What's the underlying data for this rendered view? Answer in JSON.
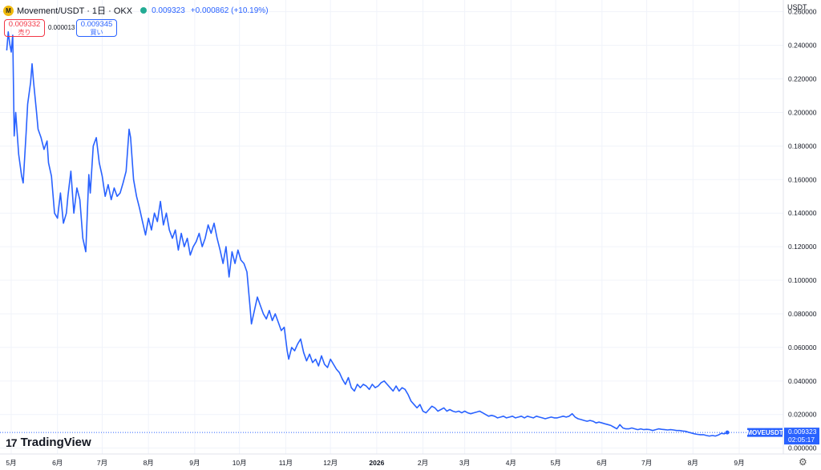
{
  "header": {
    "logo_letter": "M",
    "symbol": "Movement/USDT · 1日 · OKX",
    "price": "0.009323",
    "change": "+0.000862 (+10.19%)"
  },
  "trade": {
    "sell_price": "0.009332",
    "sell_label": "売り",
    "spread": "0.000013",
    "buy_price": "0.009345",
    "buy_label": "買い"
  },
  "currency": "USDT",
  "branding": "TradingView",
  "colors": {
    "line": "#2962ff",
    "sell": "#f23645",
    "buy": "#2962ff",
    "status": "#22ab94"
  },
  "icons": {
    "settings": "gear-icon",
    "status": "market-open-dot"
  },
  "chart_data": {
    "type": "line",
    "ylim": [
      -0.0035,
      0.267
    ],
    "grid": true,
    "y_ticks": [
      "0.260000",
      "0.240000",
      "0.220000",
      "0.200000",
      "0.180000",
      "0.160000",
      "0.140000",
      "0.120000",
      "0.100000",
      "0.080000",
      "0.060000",
      "0.040000",
      "0.020000",
      "0.000000"
    ],
    "y_tick_values": [
      0.26,
      0.24,
      0.22,
      0.2,
      0.18,
      0.16,
      0.14,
      0.12,
      0.1,
      0.08,
      0.06,
      0.04,
      0.02,
      0.0
    ],
    "x_ticks": [
      "5月",
      "6月",
      "7月",
      "8月",
      "9月",
      "10月",
      "11月",
      "12月",
      "2026",
      "2月",
      "3月",
      "4月",
      "5月",
      "6月",
      "7月",
      "8月",
      "9月"
    ],
    "x_tick_dates": [
      "2025-05-01",
      "2025-06-01",
      "2025-07-01",
      "2025-08-01",
      "2025-09-01",
      "2025-10-01",
      "2025-11-01",
      "2025-12-01",
      "2026-01-01",
      "2026-02-01",
      "2026-03-01",
      "2026-04-01",
      "2026-05-01",
      "2026-06-01",
      "2026-07-01",
      "2026-08-01",
      "2026-09-01"
    ],
    "series": [
      {
        "last_price_label": "0.009323",
        "countdown": "02:05:17",
        "symbol_label": "MOVEUSDT",
        "points": [
          [
            "2025-04-28",
            0.237
          ],
          [
            "2025-04-29",
            0.248
          ],
          [
            "2025-04-30",
            0.241
          ],
          [
            "2025-05-01",
            0.236
          ],
          [
            "2025-05-02",
            0.246
          ],
          [
            "2025-05-03",
            0.186
          ],
          [
            "2025-05-04",
            0.2
          ],
          [
            "2025-05-06",
            0.175
          ],
          [
            "2025-05-08",
            0.162
          ],
          [
            "2025-05-09",
            0.158
          ],
          [
            "2025-05-11",
            0.188
          ],
          [
            "2025-05-12",
            0.205
          ],
          [
            "2025-05-14",
            0.218
          ],
          [
            "2025-05-15",
            0.229
          ],
          [
            "2025-05-16",
            0.218
          ],
          [
            "2025-05-18",
            0.2
          ],
          [
            "2025-05-19",
            0.19
          ],
          [
            "2025-05-21",
            0.185
          ],
          [
            "2025-05-23",
            0.178
          ],
          [
            "2025-05-25",
            0.183
          ],
          [
            "2025-05-26",
            0.17
          ],
          [
            "2025-05-28",
            0.162
          ],
          [
            "2025-05-30",
            0.14
          ],
          [
            "2025-06-01",
            0.137
          ],
          [
            "2025-06-03",
            0.152
          ],
          [
            "2025-06-05",
            0.134
          ],
          [
            "2025-06-07",
            0.14
          ],
          [
            "2025-06-08",
            0.15
          ],
          [
            "2025-06-10",
            0.165
          ],
          [
            "2025-06-12",
            0.14
          ],
          [
            "2025-06-14",
            0.155
          ],
          [
            "2025-06-16",
            0.148
          ],
          [
            "2025-06-18",
            0.125
          ],
          [
            "2025-06-20",
            0.117
          ],
          [
            "2025-06-22",
            0.163
          ],
          [
            "2025-06-23",
            0.152
          ],
          [
            "2025-06-25",
            0.18
          ],
          [
            "2025-06-27",
            0.185
          ],
          [
            "2025-06-29",
            0.17
          ],
          [
            "2025-07-01",
            0.162
          ],
          [
            "2025-07-03",
            0.15
          ],
          [
            "2025-07-05",
            0.157
          ],
          [
            "2025-07-07",
            0.148
          ],
          [
            "2025-07-09",
            0.155
          ],
          [
            "2025-07-11",
            0.15
          ],
          [
            "2025-07-13",
            0.152
          ],
          [
            "2025-07-15",
            0.158
          ],
          [
            "2025-07-17",
            0.165
          ],
          [
            "2025-07-19",
            0.19
          ],
          [
            "2025-07-20",
            0.185
          ],
          [
            "2025-07-22",
            0.16
          ],
          [
            "2025-07-24",
            0.15
          ],
          [
            "2025-07-26",
            0.143
          ],
          [
            "2025-07-28",
            0.135
          ],
          [
            "2025-07-30",
            0.127
          ],
          [
            "2025-08-01",
            0.137
          ],
          [
            "2025-08-03",
            0.13
          ],
          [
            "2025-08-05",
            0.14
          ],
          [
            "2025-08-07",
            0.135
          ],
          [
            "2025-08-09",
            0.147
          ],
          [
            "2025-08-11",
            0.133
          ],
          [
            "2025-08-13",
            0.14
          ],
          [
            "2025-08-15",
            0.13
          ],
          [
            "2025-08-17",
            0.125
          ],
          [
            "2025-08-19",
            0.13
          ],
          [
            "2025-08-21",
            0.118
          ],
          [
            "2025-08-23",
            0.128
          ],
          [
            "2025-08-25",
            0.12
          ],
          [
            "2025-08-27",
            0.125
          ],
          [
            "2025-08-29",
            0.115
          ],
          [
            "2025-08-31",
            0.12
          ],
          [
            "2025-09-02",
            0.123
          ],
          [
            "2025-09-04",
            0.128
          ],
          [
            "2025-09-06",
            0.12
          ],
          [
            "2025-09-08",
            0.125
          ],
          [
            "2025-09-10",
            0.133
          ],
          [
            "2025-09-12",
            0.128
          ],
          [
            "2025-09-14",
            0.134
          ],
          [
            "2025-09-16",
            0.125
          ],
          [
            "2025-09-18",
            0.118
          ],
          [
            "2025-09-20",
            0.11
          ],
          [
            "2025-09-22",
            0.12
          ],
          [
            "2025-09-24",
            0.102
          ],
          [
            "2025-09-26",
            0.117
          ],
          [
            "2025-09-28",
            0.11
          ],
          [
            "2025-09-30",
            0.118
          ],
          [
            "2025-10-02",
            0.112
          ],
          [
            "2025-10-04",
            0.11
          ],
          [
            "2025-10-06",
            0.105
          ],
          [
            "2025-10-08",
            0.085
          ],
          [
            "2025-10-09",
            0.074
          ],
          [
            "2025-10-11",
            0.082
          ],
          [
            "2025-10-13",
            0.09
          ],
          [
            "2025-10-15",
            0.085
          ],
          [
            "2025-10-17",
            0.08
          ],
          [
            "2025-10-19",
            0.077
          ],
          [
            "2025-10-21",
            0.082
          ],
          [
            "2025-10-23",
            0.076
          ],
          [
            "2025-10-25",
            0.08
          ],
          [
            "2025-10-27",
            0.075
          ],
          [
            "2025-10-29",
            0.07
          ],
          [
            "2025-10-31",
            0.072
          ],
          [
            "2025-11-02",
            0.058
          ],
          [
            "2025-11-03",
            0.053
          ],
          [
            "2025-11-05",
            0.06
          ],
          [
            "2025-11-07",
            0.058
          ],
          [
            "2025-11-09",
            0.062
          ],
          [
            "2025-11-11",
            0.065
          ],
          [
            "2025-11-13",
            0.057
          ],
          [
            "2025-11-15",
            0.052
          ],
          [
            "2025-11-17",
            0.056
          ],
          [
            "2025-11-19",
            0.051
          ],
          [
            "2025-11-21",
            0.053
          ],
          [
            "2025-11-23",
            0.049
          ],
          [
            "2025-11-25",
            0.055
          ],
          [
            "2025-11-27",
            0.05
          ],
          [
            "2025-11-29",
            0.048
          ],
          [
            "2025-12-01",
            0.053
          ],
          [
            "2025-12-03",
            0.05
          ],
          [
            "2025-12-05",
            0.047
          ],
          [
            "2025-12-07",
            0.045
          ],
          [
            "2025-12-09",
            0.041
          ],
          [
            "2025-12-11",
            0.038
          ],
          [
            "2025-12-13",
            0.042
          ],
          [
            "2025-12-15",
            0.036
          ],
          [
            "2025-12-17",
            0.034
          ],
          [
            "2025-12-19",
            0.038
          ],
          [
            "2025-12-21",
            0.036
          ],
          [
            "2025-12-23",
            0.038
          ],
          [
            "2025-12-25",
            0.037
          ],
          [
            "2025-12-27",
            0.035
          ],
          [
            "2025-12-29",
            0.038
          ],
          [
            "2025-12-31",
            0.036
          ],
          [
            "2026-01-02",
            0.037
          ],
          [
            "2026-01-04",
            0.039
          ],
          [
            "2026-01-06",
            0.04
          ],
          [
            "2026-01-08",
            0.038
          ],
          [
            "2026-01-10",
            0.036
          ],
          [
            "2026-01-12",
            0.034
          ],
          [
            "2026-01-14",
            0.037
          ],
          [
            "2026-01-16",
            0.034
          ],
          [
            "2026-01-18",
            0.036
          ],
          [
            "2026-01-20",
            0.035
          ],
          [
            "2026-01-22",
            0.032
          ],
          [
            "2026-01-24",
            0.028
          ],
          [
            "2026-01-26",
            0.026
          ],
          [
            "2026-01-28",
            0.024
          ],
          [
            "2026-01-30",
            0.026
          ],
          [
            "2026-02-01",
            0.022
          ],
          [
            "2026-02-03",
            0.021
          ],
          [
            "2026-02-05",
            0.023
          ],
          [
            "2026-02-07",
            0.025
          ],
          [
            "2026-02-09",
            0.024
          ],
          [
            "2026-02-11",
            0.022
          ],
          [
            "2026-02-13",
            0.023
          ],
          [
            "2026-02-15",
            0.024
          ],
          [
            "2026-02-17",
            0.022
          ],
          [
            "2026-02-19",
            0.023
          ],
          [
            "2026-02-21",
            0.022
          ],
          [
            "2026-02-23",
            0.0215
          ],
          [
            "2026-02-25",
            0.022
          ],
          [
            "2026-02-27",
            0.021
          ],
          [
            "2026-03-01",
            0.022
          ],
          [
            "2026-03-03",
            0.021
          ],
          [
            "2026-03-05",
            0.0205
          ],
          [
            "2026-03-07",
            0.021
          ],
          [
            "2026-03-09",
            0.0215
          ],
          [
            "2026-03-11",
            0.022
          ],
          [
            "2026-03-13",
            0.021
          ],
          [
            "2026-03-15",
            0.02
          ],
          [
            "2026-03-17",
            0.019
          ],
          [
            "2026-03-19",
            0.0195
          ],
          [
            "2026-03-21",
            0.019
          ],
          [
            "2026-03-23",
            0.018
          ],
          [
            "2026-03-25",
            0.0185
          ],
          [
            "2026-03-27",
            0.019
          ],
          [
            "2026-03-29",
            0.018
          ],
          [
            "2026-03-31",
            0.0185
          ],
          [
            "2026-04-02",
            0.019
          ],
          [
            "2026-04-04",
            0.018
          ],
          [
            "2026-04-06",
            0.0185
          ],
          [
            "2026-04-08",
            0.019
          ],
          [
            "2026-04-10",
            0.018
          ],
          [
            "2026-04-12",
            0.019
          ],
          [
            "2026-04-14",
            0.0185
          ],
          [
            "2026-04-16",
            0.018
          ],
          [
            "2026-04-18",
            0.019
          ],
          [
            "2026-04-20",
            0.0185
          ],
          [
            "2026-04-22",
            0.018
          ],
          [
            "2026-04-24",
            0.0175
          ],
          [
            "2026-04-26",
            0.018
          ],
          [
            "2026-04-28",
            0.0185
          ],
          [
            "2026-04-30",
            0.018
          ],
          [
            "2026-05-02",
            0.018
          ],
          [
            "2026-05-04",
            0.0185
          ],
          [
            "2026-05-06",
            0.019
          ],
          [
            "2026-05-08",
            0.0185
          ],
          [
            "2026-05-10",
            0.019
          ],
          [
            "2026-05-12",
            0.0205
          ],
          [
            "2026-05-14",
            0.0185
          ],
          [
            "2026-05-16",
            0.0175
          ],
          [
            "2026-05-18",
            0.017
          ],
          [
            "2026-05-20",
            0.0165
          ],
          [
            "2026-05-22",
            0.016
          ],
          [
            "2026-05-24",
            0.0165
          ],
          [
            "2026-05-26",
            0.016
          ],
          [
            "2026-05-28",
            0.015
          ],
          [
            "2026-05-30",
            0.0155
          ],
          [
            "2026-06-01",
            0.015
          ],
          [
            "2026-06-03",
            0.0145
          ],
          [
            "2026-06-05",
            0.014
          ],
          [
            "2026-06-07",
            0.0135
          ],
          [
            "2026-06-09",
            0.0125
          ],
          [
            "2026-06-11",
            0.0115
          ],
          [
            "2026-06-13",
            0.014
          ],
          [
            "2026-06-15",
            0.012
          ],
          [
            "2026-06-17",
            0.0115
          ],
          [
            "2026-06-19",
            0.0115
          ],
          [
            "2026-06-21",
            0.012
          ],
          [
            "2026-06-23",
            0.0115
          ],
          [
            "2026-06-25",
            0.011
          ],
          [
            "2026-06-27",
            0.0115
          ],
          [
            "2026-06-29",
            0.011
          ],
          [
            "2026-07-01",
            0.0112
          ],
          [
            "2026-07-03",
            0.011
          ],
          [
            "2026-07-05",
            0.0105
          ],
          [
            "2026-07-07",
            0.011
          ],
          [
            "2026-07-09",
            0.0115
          ],
          [
            "2026-07-11",
            0.0112
          ],
          [
            "2026-07-13",
            0.011
          ],
          [
            "2026-07-15",
            0.0108
          ],
          [
            "2026-07-17",
            0.011
          ],
          [
            "2026-07-19",
            0.0108
          ],
          [
            "2026-07-21",
            0.0105
          ],
          [
            "2026-07-23",
            0.0105
          ],
          [
            "2026-07-25",
            0.0102
          ],
          [
            "2026-07-27",
            0.01
          ],
          [
            "2026-07-29",
            0.0095
          ],
          [
            "2026-07-31",
            0.009
          ],
          [
            "2026-08-02",
            0.0085
          ],
          [
            "2026-08-04",
            0.0082
          ],
          [
            "2026-08-06",
            0.008
          ],
          [
            "2026-08-08",
            0.008
          ],
          [
            "2026-08-10",
            0.0075
          ],
          [
            "2026-08-12",
            0.0072
          ],
          [
            "2026-08-14",
            0.0075
          ],
          [
            "2026-08-16",
            0.0072
          ],
          [
            "2026-08-18",
            0.0078
          ],
          [
            "2026-08-20",
            0.0088
          ],
          [
            "2026-08-22",
            0.0085
          ],
          [
            "2026-08-24",
            0.009323
          ]
        ]
      }
    ]
  }
}
